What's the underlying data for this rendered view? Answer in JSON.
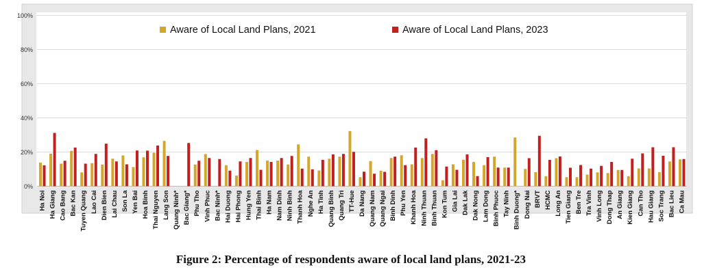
{
  "chart_data": {
    "type": "bar",
    "title": "",
    "xlabel": "",
    "ylabel": "",
    "ylim": [
      0,
      100
    ],
    "yticks": [
      "0%",
      "20%",
      "40%",
      "60%",
      "80%",
      "100%"
    ],
    "grid": true,
    "legend_position": "top",
    "categories": [
      "Ha Noi",
      "Ha Giang",
      "Cao Bang",
      "Bac Kan",
      "Tuyen Quang",
      "Lao Cai",
      "Dien Bien",
      "Lai Chau",
      "Son La",
      "Yen Bai",
      "Hoa Binh",
      "Thai Nguyen",
      "Lang Son",
      "Quang Ninh*",
      "Bac Giang*",
      "Phu Tho",
      "Vinh Phuc",
      "Bac Ninh*",
      "Hai Duong",
      "Hai Phong",
      "Hung Yen",
      "Thai Binh",
      "Ha Nam",
      "Nam Dinh",
      "Ninh Binh",
      "Thanh Hoa",
      "Nghe An",
      "Ha Tinh",
      "Quang Binh",
      "Quang Tri",
      "TT-Hue",
      "Da Nang",
      "Quang Nam",
      "Quang Ngai",
      "Binh Dinh",
      "Phu Yen",
      "Khanh Hoa",
      "Ninh Thuan",
      "Binh Thuan",
      "Kon Tum",
      "Gia Lai",
      "Dak Lak",
      "Dak Nong",
      "Lam Dong",
      "Binh Phuoc",
      "Tay Ninh",
      "Binh Duong*",
      "Dong Nai",
      "BRVT",
      "HCMC",
      "Long An",
      "Tien Giang",
      "Ben Tre",
      "Tra Vinh",
      "Vinh Long",
      "Dong Thap",
      "An Giang",
      "Kien Giang",
      "Can Tho",
      "Hau Giang",
      "Soc Trang",
      "Bac Lieu",
      "Ca Mau"
    ],
    "series": [
      {
        "name": "Aware of Local Land Plans, 2021",
        "color": "#d4a72c",
        "values": [
          13.8,
          19.0,
          13.2,
          20.7,
          8.1,
          13.5,
          12.7,
          16.1,
          18.0,
          11.2,
          16.9,
          19.6,
          26.5,
          null,
          null,
          12.7,
          18.8,
          null,
          12.3,
          6.2,
          14.2,
          21.2,
          15.0,
          15.0,
          12.7,
          24.5,
          17.3,
          9.2,
          16.1,
          17.3,
          32.3,
          5.3,
          14.7,
          9.1,
          16.5,
          18.1,
          12.8,
          16.5,
          18.9,
          3.5,
          12.8,
          15.5,
          14.2,
          12.3,
          17.3,
          10.9,
          28.5,
          10.1,
          8.2,
          5.8,
          16.4,
          5.3,
          5.3,
          6.8,
          8.1,
          7.7,
          9.5,
          5.8,
          10.4,
          10.4,
          8.2,
          14.5,
          15.7
        ]
      },
      {
        "name": "Aware of Local Land Plans, 2023",
        "color": "#c0201f",
        "values": [
          12.2,
          31.2,
          14.9,
          22.6,
          13.2,
          18.9,
          24.9,
          14.5,
          12.8,
          20.9,
          20.8,
          23.8,
          17.7,
          null,
          25.3,
          14.9,
          16.5,
          15.9,
          9.1,
          14.5,
          16.5,
          9.6,
          14.2,
          16.5,
          17.7,
          10.3,
          9.9,
          15.4,
          18.6,
          18.9,
          20.1,
          8.5,
          7.3,
          8.4,
          17.3,
          12.3,
          22.6,
          28.0,
          21.1,
          11.5,
          9.6,
          18.6,
          5.9,
          17.0,
          10.9,
          10.9,
          null,
          16.4,
          29.5,
          15.4,
          17.4,
          10.8,
          12.4,
          10.3,
          11.9,
          14.2,
          9.5,
          16.1,
          19.2,
          22.8,
          17.8,
          22.8,
          15.9
        ]
      }
    ]
  },
  "caption": "Figure 2: Percentage of respondents aware of local land plans, 2021-23"
}
